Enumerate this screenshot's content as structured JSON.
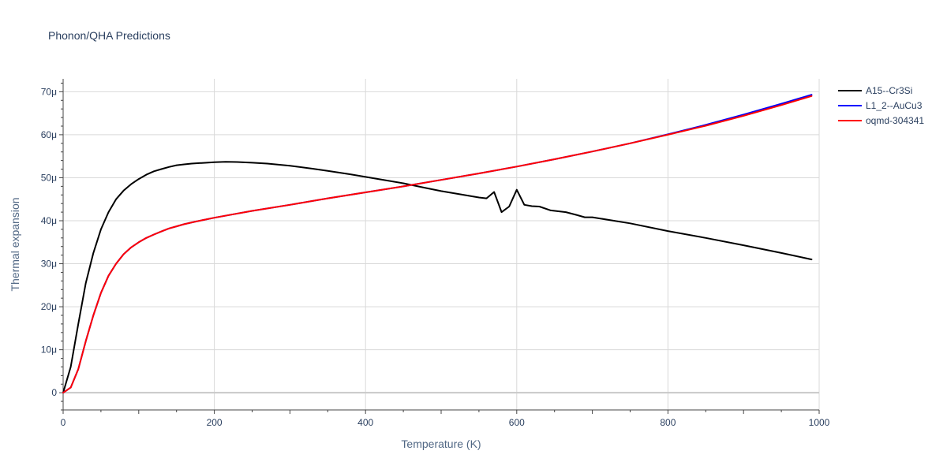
{
  "chart_data": {
    "type": "line",
    "title": "Phonon/QHA Predictions",
    "xlabel": "Temperature (K)",
    "ylabel": "Thermal expansion",
    "xlim": [
      0,
      1000
    ],
    "ylim": [
      -4e-06,
      7.3e-05
    ],
    "x_ticks": [
      {
        "value": 0,
        "label": "0"
      },
      {
        "value": 200,
        "label": "200"
      },
      {
        "value": 400,
        "label": "400"
      },
      {
        "value": 600,
        "label": "600"
      },
      {
        "value": 800,
        "label": "800"
      },
      {
        "value": 1000,
        "label": "1000"
      }
    ],
    "y_ticks": [
      {
        "value": 0,
        "label": "0"
      },
      {
        "value": 1e-05,
        "label": "10μ"
      },
      {
        "value": 2e-05,
        "label": "20μ"
      },
      {
        "value": 3e-05,
        "label": "30μ"
      },
      {
        "value": 4e-05,
        "label": "40μ"
      },
      {
        "value": 5e-05,
        "label": "50μ"
      },
      {
        "value": 6e-05,
        "label": "60μ"
      },
      {
        "value": 7e-05,
        "label": "70μ"
      }
    ],
    "grid": true,
    "legend_position": "top-right",
    "series": [
      {
        "name": "A15--Cr3Si",
        "color": "#000000",
        "x": [
          0,
          10,
          20,
          30,
          40,
          50,
          60,
          70,
          80,
          90,
          100,
          110,
          120,
          130,
          140,
          150,
          160,
          170,
          180,
          190,
          200,
          215,
          230,
          250,
          270,
          300,
          330,
          350,
          380,
          400,
          420,
          450,
          480,
          500,
          520,
          540,
          550,
          560,
          570,
          580,
          590,
          600,
          610,
          620,
          630,
          645,
          665,
          680,
          690,
          700,
          750,
          800,
          850,
          900,
          950,
          990
        ],
        "y": [
          0,
          6e-06,
          1.6e-05,
          2.55e-05,
          3.25e-05,
          3.8e-05,
          4.2e-05,
          4.5e-05,
          4.7e-05,
          4.85e-05,
          4.97e-05,
          5.07e-05,
          5.15e-05,
          5.2e-05,
          5.25e-05,
          5.29e-05,
          5.31e-05,
          5.33e-05,
          5.34e-05,
          5.35e-05,
          5.36e-05,
          5.37e-05,
          5.365e-05,
          5.35e-05,
          5.33e-05,
          5.28e-05,
          5.21e-05,
          5.16e-05,
          5.08e-05,
          5.02e-05,
          4.96e-05,
          4.87e-05,
          4.76e-05,
          4.69e-05,
          4.63e-05,
          4.57e-05,
          4.54e-05,
          4.52e-05,
          4.67e-05,
          4.2e-05,
          4.33e-05,
          4.72e-05,
          4.37e-05,
          4.34e-05,
          4.33e-05,
          4.24e-05,
          4.2e-05,
          4.13e-05,
          4.08e-05,
          4.08e-05,
          3.94e-05,
          3.76e-05,
          3.6e-05,
          3.43e-05,
          3.25e-05,
          3.1e-05
        ]
      },
      {
        "name": "L1_2--AuCu3",
        "color": "#0000ff",
        "x": [
          0,
          10,
          20,
          30,
          40,
          50,
          60,
          70,
          80,
          90,
          100,
          110,
          120,
          130,
          140,
          150,
          160,
          175,
          200,
          225,
          250,
          300,
          350,
          400,
          450,
          500,
          550,
          600,
          650,
          700,
          750,
          800,
          850,
          900,
          950,
          990
        ],
        "y": [
          0,
          1.2e-06,
          5.5e-06,
          1.2e-05,
          1.8e-05,
          2.32e-05,
          2.72e-05,
          3e-05,
          3.22e-05,
          3.38e-05,
          3.5e-05,
          3.6e-05,
          3.68e-05,
          3.75e-05,
          3.82e-05,
          3.87e-05,
          3.92e-05,
          3.98e-05,
          4.07e-05,
          4.15e-05,
          4.23e-05,
          4.37e-05,
          4.52e-05,
          4.66e-05,
          4.8e-05,
          4.95e-05,
          5.1e-05,
          5.26e-05,
          5.43e-05,
          5.61e-05,
          5.8e-05,
          6.01e-05,
          6.23e-05,
          6.47e-05,
          6.72e-05,
          6.93e-05
        ]
      },
      {
        "name": "oqmd-304341",
        "color": "#ff0000",
        "x": [
          0,
          10,
          20,
          30,
          40,
          50,
          60,
          70,
          80,
          90,
          100,
          110,
          120,
          130,
          140,
          150,
          160,
          175,
          200,
          225,
          250,
          300,
          350,
          400,
          450,
          500,
          550,
          600,
          650,
          700,
          750,
          800,
          850,
          900,
          950,
          990
        ],
        "y": [
          0,
          1.2e-06,
          5.5e-06,
          1.2e-05,
          1.8e-05,
          2.32e-05,
          2.72e-05,
          3e-05,
          3.22e-05,
          3.38e-05,
          3.5e-05,
          3.6e-05,
          3.68e-05,
          3.75e-05,
          3.82e-05,
          3.87e-05,
          3.92e-05,
          3.98e-05,
          4.07e-05,
          4.15e-05,
          4.23e-05,
          4.37e-05,
          4.52e-05,
          4.66e-05,
          4.8e-05,
          4.95e-05,
          5.1e-05,
          5.26e-05,
          5.43e-05,
          5.61e-05,
          5.8e-05,
          6e-05,
          6.21e-05,
          6.44e-05,
          6.69e-05,
          6.9e-05
        ]
      }
    ]
  }
}
